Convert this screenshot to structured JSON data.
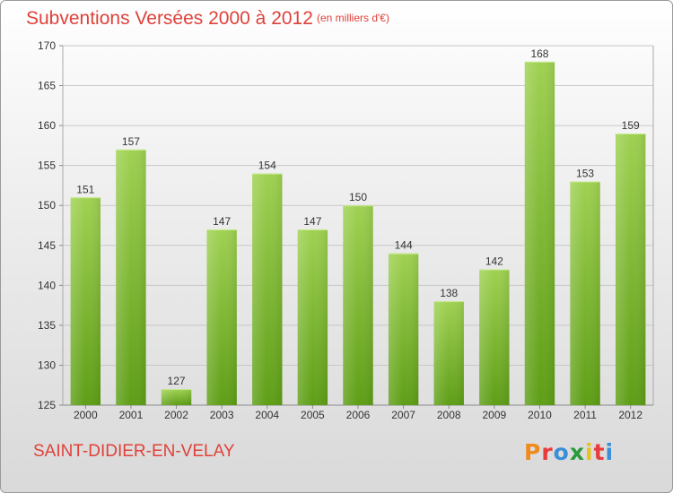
{
  "header": {
    "title": "Subventions Versées 2000 à 2012",
    "unit_note": "(en milliers d'€)"
  },
  "footer": {
    "commune": "SAINT-DIDIER-EN-VELAY",
    "logo_text": "Proxiti",
    "logo_colors": [
      "#f08a1c",
      "#e83c3c",
      "#3a8fd8",
      "#2b9a3c",
      "#e8c21c",
      "#e83c3c",
      "#3a8fd8"
    ]
  },
  "colors": {
    "title": "#e0413a",
    "bar_light": "#9fd152",
    "bar_dark": "#5e9e16",
    "grid": "#c8c8c8"
  },
  "chart_data": {
    "type": "bar",
    "title": "Subventions Versées 2000 à 2012",
    "subtitle": "(en milliers d'€)",
    "xlabel": "",
    "ylabel": "",
    "categories": [
      "2000",
      "2001",
      "2002",
      "2003",
      "2004",
      "2005",
      "2006",
      "2007",
      "2008",
      "2009",
      "2010",
      "2011",
      "2012"
    ],
    "values": [
      151,
      157,
      127,
      147,
      154,
      147,
      150,
      144,
      138,
      142,
      168,
      153,
      159
    ],
    "ylim": [
      125,
      170
    ],
    "yticks": [
      125,
      130,
      135,
      140,
      145,
      150,
      155,
      160,
      165,
      170
    ],
    "grid": true,
    "data_labels": true
  }
}
